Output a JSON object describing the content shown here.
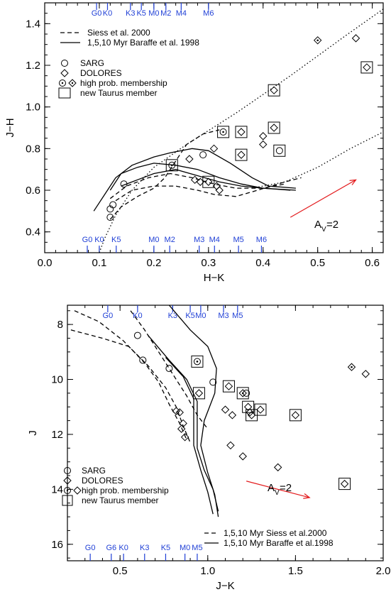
{
  "chart_data": [
    {
      "type": "scatter",
      "xlabel": "H−K",
      "ylabel": "J−H",
      "xlim": [
        0.0,
        0.62
      ],
      "ylim": [
        0.3,
        1.5
      ],
      "xticks": [
        "0.0",
        "0.1",
        "0.2",
        "0.3",
        "0.4",
        "0.5",
        "0.6"
      ],
      "xtick_values": [
        0.0,
        0.1,
        0.2,
        0.3,
        0.4,
        0.5,
        0.6
      ],
      "yticks": [
        "0.4",
        "0.6",
        "0.8",
        "1.0",
        "1.2",
        "1.4"
      ],
      "ytick_values": [
        0.4,
        0.6,
        0.8,
        1.0,
        1.2,
        1.4
      ],
      "spt_top": [
        {
          "label": "G0",
          "x": 0.095
        },
        {
          "label": "K0",
          "x": 0.115
        },
        {
          "label": "K3",
          "x": 0.157
        },
        {
          "label": "K5",
          "x": 0.177
        },
        {
          "label": "M0",
          "x": 0.2
        },
        {
          "label": "M2",
          "x": 0.222
        },
        {
          "label": "M4",
          "x": 0.25
        },
        {
          "label": "M6",
          "x": 0.3
        }
      ],
      "spt_bottom": [
        {
          "label": "G0",
          "x": 0.078
        },
        {
          "label": "K0",
          "x": 0.1
        },
        {
          "label": "K5",
          "x": 0.131
        },
        {
          "label": "M0",
          "x": 0.2
        },
        {
          "label": "M2",
          "x": 0.229
        },
        {
          "label": "M3",
          "x": 0.283
        },
        {
          "label": "M4",
          "x": 0.311
        },
        {
          "label": "M5",
          "x": 0.355
        },
        {
          "label": "M6",
          "x": 0.397
        }
      ],
      "legend_models": [
        {
          "style": "dash",
          "label": "Siess et al. 2000"
        },
        {
          "style": "solid",
          "label": "1,5,10 Myr Baraffe et al. 1998"
        }
      ],
      "legend_markers": [
        {
          "marker": "circle",
          "label": "SARG"
        },
        {
          "marker": "diamond",
          "label": "DOLORES"
        },
        {
          "marker": "dot-circle-diamond",
          "label": "high prob. membership"
        },
        {
          "marker": "square",
          "label": "new Taurus member"
        }
      ],
      "reddening": {
        "label": "A",
        "sub": "V",
        "value": "=2",
        "from": [
          0.45,
          0.47
        ],
        "to": [
          0.57,
          0.65
        ]
      },
      "series": [
        {
          "marker": "circle",
          "points": [
            [
              0.12,
              0.51
            ],
            [
              0.12,
              0.47
            ],
            [
              0.125,
              0.53
            ],
            [
              0.145,
              0.63
            ],
            [
              0.233,
              0.72
            ],
            [
              0.29,
              0.77
            ],
            [
              0.43,
              0.79
            ],
            [
              0.327,
              0.88
            ]
          ]
        },
        {
          "marker": "diamond",
          "points": [
            [
              0.265,
              0.75
            ],
            [
              0.275,
              0.65
            ],
            [
              0.285,
              0.64
            ],
            [
              0.3,
              0.64
            ],
            [
              0.31,
              0.8
            ],
            [
              0.315,
              0.62
            ],
            [
              0.32,
              0.6
            ],
            [
              0.36,
              0.88
            ],
            [
              0.36,
              0.77
            ],
            [
              0.4,
              0.82
            ],
            [
              0.4,
              0.86
            ],
            [
              0.42,
              0.9
            ],
            [
              0.42,
              1.08
            ],
            [
              0.57,
              1.33
            ],
            [
              0.59,
              1.19
            ],
            [
              0.5,
              1.32
            ]
          ]
        },
        {
          "marker": "square",
          "points": [
            [
              0.233,
              0.72
            ],
            [
              0.327,
              0.88
            ],
            [
              0.36,
              0.88
            ],
            [
              0.36,
              0.77
            ],
            [
              0.42,
              0.9
            ],
            [
              0.42,
              1.08
            ],
            [
              0.59,
              1.19
            ],
            [
              0.43,
              0.79
            ],
            [
              0.3,
              0.64
            ]
          ]
        },
        {
          "marker": "dot",
          "points": [
            [
              0.233,
              0.72
            ],
            [
              0.327,
              0.88
            ],
            [
              0.5,
              1.32
            ]
          ]
        }
      ],
      "curves": {
        "solid": [
          [
            [
              0.09,
              0.5
            ],
            [
              0.11,
              0.58
            ],
            [
              0.13,
              0.66
            ],
            [
              0.16,
              0.72
            ],
            [
              0.2,
              0.76
            ],
            [
              0.23,
              0.78
            ],
            [
              0.27,
              0.8
            ],
            [
              0.3,
              0.79
            ],
            [
              0.34,
              0.73
            ],
            [
              0.38,
              0.66
            ],
            [
              0.41,
              0.62
            ],
            [
              0.46,
              0.61
            ]
          ],
          [
            [
              0.12,
              0.6
            ],
            [
              0.14,
              0.68
            ],
            [
              0.17,
              0.71
            ],
            [
              0.2,
              0.73
            ],
            [
              0.24,
              0.72
            ],
            [
              0.28,
              0.7
            ],
            [
              0.32,
              0.66
            ],
            [
              0.36,
              0.63
            ],
            [
              0.4,
              0.61
            ],
            [
              0.46,
              0.6
            ]
          ],
          [
            [
              0.14,
              0.62
            ],
            [
              0.17,
              0.65
            ],
            [
              0.2,
              0.68
            ],
            [
              0.24,
              0.7
            ],
            [
              0.28,
              0.67
            ],
            [
              0.32,
              0.64
            ],
            [
              0.36,
              0.62
            ],
            [
              0.4,
              0.61
            ],
            [
              0.45,
              0.6
            ]
          ]
        ],
        "dash": [
          [
            [
              0.12,
              0.46
            ],
            [
              0.14,
              0.52
            ],
            [
              0.17,
              0.57
            ],
            [
              0.2,
              0.61
            ],
            [
              0.22,
              0.66
            ],
            [
              0.24,
              0.74
            ],
            [
              0.26,
              0.82
            ],
            [
              0.29,
              0.87
            ],
            [
              0.32,
              0.89
            ]
          ],
          [
            [
              0.13,
              0.55
            ],
            [
              0.16,
              0.6
            ],
            [
              0.2,
              0.62
            ],
            [
              0.24,
              0.62
            ],
            [
              0.28,
              0.6
            ],
            [
              0.31,
              0.58
            ],
            [
              0.35,
              0.57
            ],
            [
              0.39,
              0.6
            ],
            [
              0.44,
              0.64
            ],
            [
              0.47,
              0.66
            ]
          ],
          [
            [
              0.12,
              0.56
            ],
            [
              0.15,
              0.62
            ],
            [
              0.19,
              0.66
            ],
            [
              0.23,
              0.68
            ],
            [
              0.27,
              0.66
            ],
            [
              0.31,
              0.63
            ],
            [
              0.35,
              0.61
            ],
            [
              0.4,
              0.61
            ],
            [
              0.44,
              0.63
            ]
          ]
        ],
        "dot": [
          [
            [
              0.1,
              0.3
            ],
            [
              0.11,
              0.37
            ],
            [
              0.13,
              0.48
            ],
            [
              0.16,
              0.6
            ],
            [
              0.2,
              0.71
            ],
            [
              0.26,
              0.82
            ],
            [
              0.35,
              0.97
            ],
            [
              0.45,
              1.15
            ],
            [
              0.55,
              1.34
            ],
            [
              0.62,
              1.47
            ]
          ],
          [
            [
              0.38,
              0.61
            ],
            [
              0.44,
              0.64
            ],
            [
              0.5,
              0.71
            ],
            [
              0.56,
              0.8
            ],
            [
              0.62,
              0.88
            ]
          ]
        ]
      }
    },
    {
      "type": "scatter",
      "xlabel": "J−K",
      "ylabel": "J",
      "xlim": [
        0.2,
        2.0
      ],
      "ylim": [
        16.6,
        7.3
      ],
      "xticks": [
        "0.5",
        "1.0",
        "1.5",
        "2.0"
      ],
      "xtick_values": [
        0.5,
        1.0,
        1.5,
        2.0
      ],
      "yticks": [
        "8",
        "10",
        "12",
        "14",
        "16"
      ],
      "ytick_values": [
        8,
        10,
        12,
        14,
        16
      ],
      "spt_top": [
        {
          "label": "G0",
          "x": 0.43
        },
        {
          "label": "K0",
          "x": 0.6
        },
        {
          "label": "K3",
          "x": 0.8
        },
        {
          "label": "K5",
          "x": 0.9
        },
        {
          "label": "M0",
          "x": 0.96
        },
        {
          "label": "M3",
          "x": 1.09
        },
        {
          "label": "M5",
          "x": 1.17
        }
      ],
      "spt_bottom": [
        {
          "label": "G0",
          "x": 0.33
        },
        {
          "label": "G6",
          "x": 0.45
        },
        {
          "label": "K0",
          "x": 0.52
        },
        {
          "label": "K3",
          "x": 0.64
        },
        {
          "label": "K5",
          "x": 0.76
        },
        {
          "label": "M0",
          "x": 0.87
        },
        {
          "label": "M5",
          "x": 0.94
        }
      ],
      "legend_markers": [
        {
          "marker": "circle",
          "label": "SARG"
        },
        {
          "marker": "diamond",
          "label": "DOLORES"
        },
        {
          "marker": "dot-circle-diamond",
          "label": "high prob. membership"
        },
        {
          "marker": "square",
          "label": "new Taurus member"
        }
      ],
      "legend_models": [
        {
          "style": "dash",
          "label": "1,5,10 Myr Siess et al.2000"
        },
        {
          "style": "solid",
          "label": "1,5,10 Myr Baraffe et al.1998"
        }
      ],
      "reddening": {
        "label": "A",
        "sub": "V",
        "value": "=2",
        "from": [
          1.22,
          13.7
        ],
        "to": [
          1.58,
          14.3
        ]
      },
      "series": [
        {
          "marker": "circle",
          "points": [
            [
              0.6,
              8.4
            ],
            [
              0.63,
              9.3
            ],
            [
              0.78,
              9.6
            ],
            [
              1.03,
              10.1
            ],
            [
              0.94,
              9.35
            ],
            [
              1.22,
              10.5
            ]
          ]
        },
        {
          "marker": "diamond",
          "points": [
            [
              0.82,
              11.15
            ],
            [
              0.84,
              11.2
            ],
            [
              0.85,
              11.8
            ],
            [
              0.86,
              11.6
            ],
            [
              0.87,
              12.1
            ],
            [
              0.95,
              10.5
            ],
            [
              1.1,
              11.1
            ],
            [
              1.12,
              10.25
            ],
            [
              1.13,
              12.4
            ],
            [
              1.2,
              10.5
            ],
            [
              1.2,
              12.8
            ],
            [
              1.23,
              11.0
            ],
            [
              1.24,
              11.2
            ],
            [
              1.3,
              11.1
            ],
            [
              1.4,
              13.2
            ],
            [
              1.5,
              11.3
            ],
            [
              1.78,
              13.8
            ],
            [
              1.82,
              9.55
            ],
            [
              1.9,
              9.8
            ],
            [
              1.14,
              11.3
            ],
            [
              1.25,
              11.3
            ]
          ]
        },
        {
          "marker": "square",
          "points": [
            [
              0.94,
              9.35
            ],
            [
              0.95,
              10.5
            ],
            [
              1.12,
              10.25
            ],
            [
              1.2,
              10.5
            ],
            [
              1.23,
              11.0
            ],
            [
              1.25,
              11.3
            ],
            [
              1.3,
              11.1
            ],
            [
              1.5,
              11.3
            ],
            [
              1.78,
              13.8
            ]
          ]
        },
        {
          "marker": "dot",
          "points": [
            [
              0.94,
              9.35
            ],
            [
              1.82,
              9.55
            ],
            [
              1.2,
              10.5
            ]
          ]
        }
      ],
      "curves": {
        "solid": [
          [
            [
              0.78,
              7.3
            ],
            [
              0.9,
              8.2
            ],
            [
              1.0,
              8.8
            ],
            [
              1.05,
              9.6
            ],
            [
              1.04,
              10.5
            ],
            [
              0.98,
              11.5
            ],
            [
              0.96,
              12.4
            ],
            [
              1.0,
              13.4
            ],
            [
              1.04,
              14.2
            ],
            [
              1.06,
              15.0
            ]
          ],
          [
            [
              0.66,
              8.4
            ],
            [
              0.78,
              9.3
            ],
            [
              0.88,
              10.0
            ],
            [
              0.94,
              10.8
            ],
            [
              0.94,
              11.6
            ],
            [
              0.94,
              12.5
            ],
            [
              0.98,
              13.3
            ],
            [
              1.03,
              14.0
            ],
            [
              1.06,
              14.8
            ]
          ],
          [
            [
              0.76,
              9.2
            ],
            [
              0.86,
              9.9
            ],
            [
              0.92,
              10.7
            ],
            [
              0.92,
              11.5
            ],
            [
              0.92,
              12.4
            ],
            [
              0.96,
              13.3
            ],
            [
              1.0,
              14.1
            ],
            [
              1.03,
              14.9
            ]
          ]
        ],
        "dash": [
          [
            [
              0.22,
              8.2
            ],
            [
              0.4,
              8.5
            ],
            [
              0.55,
              8.8
            ],
            [
              0.66,
              9.5
            ],
            [
              0.76,
              10.3
            ],
            [
              0.82,
              11.0
            ],
            [
              0.86,
              11.7
            ],
            [
              0.9,
              12.3
            ]
          ],
          [
            [
              0.24,
              7.5
            ],
            [
              0.38,
              7.9
            ],
            [
              0.52,
              8.6
            ],
            [
              0.64,
              9.4
            ],
            [
              0.72,
              10.1
            ],
            [
              0.78,
              10.9
            ],
            [
              0.84,
              11.6
            ],
            [
              0.88,
              12.2
            ]
          ],
          [
            [
              0.56,
              7.5
            ],
            [
              0.64,
              8.2
            ],
            [
              0.72,
              9.0
            ],
            [
              0.8,
              9.8
            ],
            [
              0.88,
              10.6
            ],
            [
              0.94,
              11.3
            ],
            [
              1.0,
              11.8
            ]
          ]
        ]
      }
    }
  ]
}
